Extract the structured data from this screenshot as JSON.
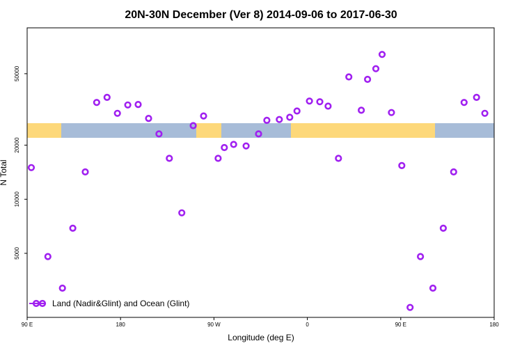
{
  "chart_data": {
    "type": "scatter",
    "title": "20N-30N December (Ver 8)   2014-09-06 to 2017-06-30",
    "xlabel": "Longitude (deg E)",
    "ylabel": "N Total",
    "x_ticks": [
      {
        "value": 90,
        "label": "90 E"
      },
      {
        "value": 180,
        "label": "180"
      },
      {
        "value": 270,
        "label": "90 W"
      },
      {
        "value": 360,
        "label": "0"
      },
      {
        "value": 450,
        "label": "90 E"
      },
      {
        "value": 540,
        "label": "180"
      }
    ],
    "y_ticks": [
      {
        "value": 5000,
        "label": "5000"
      },
      {
        "value": 10000,
        "label": "10000"
      },
      {
        "value": 20000,
        "label": "20000"
      },
      {
        "value": 50000,
        "label": "50000"
      }
    ],
    "legend": {
      "label": "Land (Nadir&Glint) and Ocean (Glint)",
      "position": "bottom-left"
    },
    "series": [
      {
        "name": "Land (Nadir&Glint) and Ocean (Glint)",
        "color": "#a020f0",
        "x": [
          94,
          110,
          124,
          134,
          146,
          157,
          167,
          177,
          187,
          197,
          207,
          217,
          227,
          239,
          250,
          260,
          274,
          280,
          289,
          301,
          313,
          321,
          333,
          343,
          350,
          362,
          372,
          380,
          390,
          400,
          412,
          418,
          426,
          432,
          441,
          451,
          459,
          469,
          481,
          491,
          501,
          511,
          523,
          531
        ],
        "y": [
          15000,
          4800,
          3200,
          6900,
          14200,
          34600,
          36900,
          30100,
          33500,
          33700,
          28200,
          23100,
          16900,
          8400,
          25700,
          29100,
          16900,
          19400,
          20200,
          19800,
          23100,
          27500,
          27800,
          28600,
          31000,
          35200,
          34900,
          33000,
          16900,
          48000,
          31300,
          46500,
          53300,
          64000,
          30400,
          15400,
          2500,
          4800,
          3200,
          6900,
          14200,
          34600,
          36900,
          30100
        ],
        "marker": "open-circle"
      }
    ],
    "xlim": [
      90,
      540
    ],
    "ylim_log": [
      2200,
      90000
    ],
    "map_band": {
      "ocean_color": "#a7bcd8",
      "land_color": "#fdd87a"
    }
  }
}
